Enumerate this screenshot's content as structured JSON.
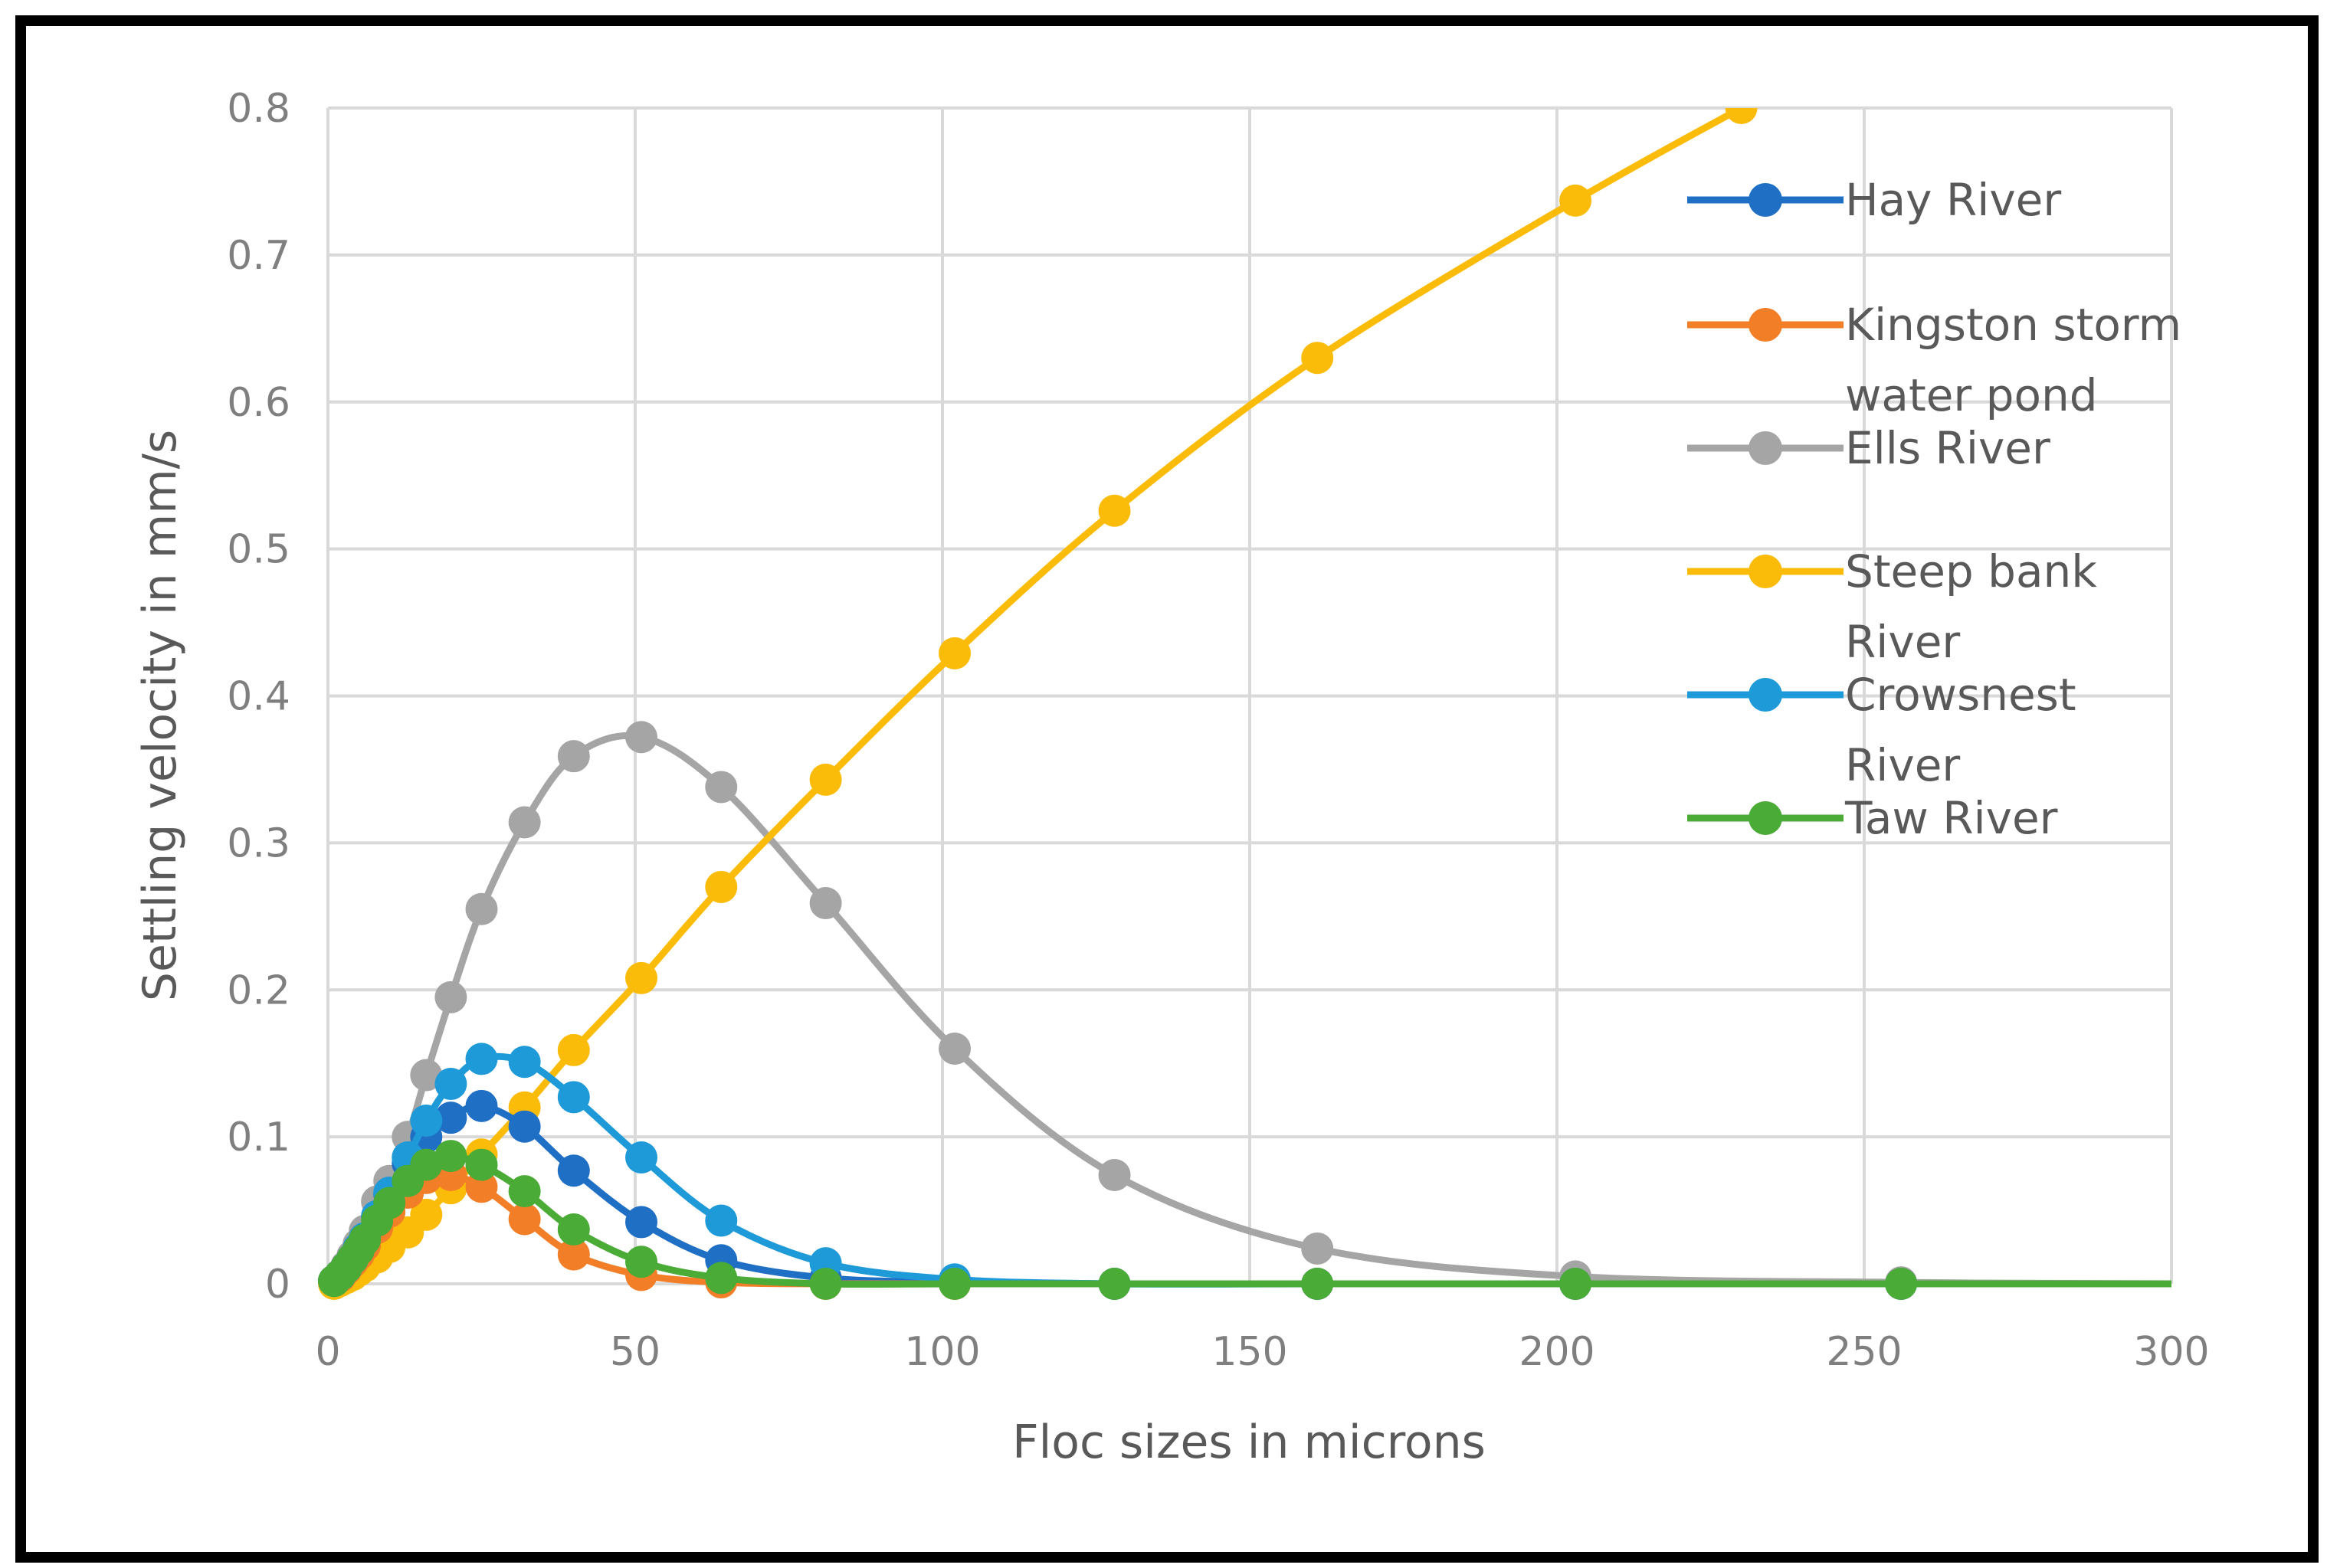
{
  "chart_data": {
    "type": "line",
    "title": "",
    "xlabel": "Floc sizes in microns",
    "ylabel": "Settling velocity in mm/s",
    "xlim": [
      0,
      300
    ],
    "ylim": [
      0,
      0.8
    ],
    "xticks": [
      0,
      50,
      100,
      150,
      200,
      250,
      300
    ],
    "yticks": [
      0,
      0.1,
      0.2,
      0.3,
      0.4,
      0.5,
      0.6,
      0.7,
      0.8
    ],
    "xtick_labels": [
      "0",
      "50",
      "100",
      "150",
      "200",
      "250",
      "300"
    ],
    "ytick_labels": [
      "0",
      "0.1",
      "0.2",
      "0.3",
      "0.4",
      "0.5",
      "0.6",
      "0.7",
      "0.8"
    ],
    "grid": true,
    "legend_position": "right",
    "series": [
      {
        "name": "Hay River",
        "legend_lines": [
          "Hay River"
        ],
        "color": "#1f6fc5",
        "x": [
          1,
          2,
          3,
          4,
          5,
          6,
          8,
          10,
          13,
          16,
          20,
          25,
          32,
          40,
          51,
          64,
          81,
          102,
          128,
          161,
          203,
          256,
          300
        ],
        "y": [
          0.002,
          0.006,
          0.011,
          0.017,
          0.024,
          0.031,
          0.046,
          0.061,
          0.082,
          0.1,
          0.113,
          0.121,
          0.107,
          0.077,
          0.042,
          0.016,
          0.004,
          0.001,
          0,
          0,
          0,
          0,
          0
        ]
      },
      {
        "name": "Kingston storm water pond",
        "legend_lines": [
          "Kingston storm",
          "water pond"
        ],
        "color": "#f27e27",
        "x": [
          1,
          2,
          3,
          4,
          5,
          6,
          8,
          10,
          13,
          16,
          20,
          25,
          32,
          40,
          51,
          64,
          81,
          102,
          128,
          161,
          203,
          256,
          300
        ],
        "y": [
          0.002,
          0.005,
          0.01,
          0.015,
          0.02,
          0.026,
          0.038,
          0.049,
          0.062,
          0.072,
          0.074,
          0.066,
          0.044,
          0.02,
          0.006,
          0.001,
          0,
          0,
          0,
          0,
          0,
          0,
          0
        ]
      },
      {
        "name": "Ells River",
        "legend_lines": [
          "Ells River"
        ],
        "color": "#a5a5a5",
        "x": [
          1,
          2,
          3,
          4,
          5,
          6,
          8,
          10,
          13,
          16,
          20,
          25,
          32,
          40,
          51,
          64,
          81,
          102,
          128,
          161,
          203,
          256,
          300
        ],
        "y": [
          0.002,
          0.006,
          0.012,
          0.019,
          0.027,
          0.036,
          0.056,
          0.07,
          0.1,
          0.142,
          0.195,
          0.255,
          0.314,
          0.359,
          0.372,
          0.338,
          0.259,
          0.16,
          0.074,
          0.024,
          0.005,
          0.001,
          0
        ]
      },
      {
        "name": "Steep bank River",
        "legend_lines": [
          "Steep bank",
          "River"
        ],
        "color": "#fbbc09",
        "x": [
          1,
          2,
          3,
          4,
          5,
          6,
          8,
          10,
          13,
          16,
          20,
          25,
          32,
          40,
          51,
          64,
          81,
          102,
          128,
          161,
          203,
          230
        ],
        "y": [
          0,
          0.002,
          0.004,
          0.006,
          0.009,
          0.012,
          0.018,
          0.025,
          0.035,
          0.047,
          0.065,
          0.088,
          0.12,
          0.159,
          0.208,
          0.27,
          0.343,
          0.429,
          0.526,
          0.63,
          0.737,
          0.8
        ]
      },
      {
        "name": "Crowsnest River",
        "legend_lines": [
          "Crowsnest",
          "River"
        ],
        "color": "#1f9ad8",
        "x": [
          1,
          2,
          3,
          4,
          5,
          6,
          8,
          10,
          13,
          16,
          20,
          25,
          32,
          40,
          51,
          64,
          81,
          102,
          128,
          161,
          203,
          256,
          300
        ],
        "y": [
          0.002,
          0.006,
          0.011,
          0.017,
          0.024,
          0.031,
          0.046,
          0.062,
          0.086,
          0.111,
          0.136,
          0.153,
          0.151,
          0.127,
          0.086,
          0.043,
          0.014,
          0.003,
          0,
          0,
          0,
          0,
          0
        ]
      },
      {
        "name": "Taw River",
        "legend_lines": [
          " Taw River"
        ],
        "color": "#4aab36",
        "x": [
          1,
          2,
          3,
          4,
          5,
          6,
          8,
          10,
          13,
          16,
          20,
          25,
          32,
          40,
          51,
          64,
          81,
          102,
          128,
          161,
          203,
          256,
          300
        ],
        "y": [
          0.002,
          0.006,
          0.011,
          0.017,
          0.023,
          0.03,
          0.043,
          0.055,
          0.07,
          0.081,
          0.087,
          0.081,
          0.063,
          0.037,
          0.015,
          0.004,
          0,
          0,
          0,
          0,
          0,
          0,
          0
        ]
      }
    ]
  }
}
